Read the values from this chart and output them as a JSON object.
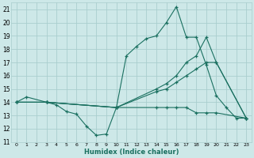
{
  "xlabel": "Humidex (Indice chaleur)",
  "xlim": [
    -0.5,
    23.5
  ],
  "ylim": [
    11,
    21.5
  ],
  "xticks": [
    0,
    1,
    2,
    3,
    4,
    5,
    6,
    7,
    8,
    9,
    10,
    11,
    12,
    13,
    14,
    15,
    16,
    17,
    18,
    19,
    20,
    21,
    22,
    23
  ],
  "yticks": [
    11,
    12,
    13,
    14,
    15,
    16,
    17,
    18,
    19,
    20,
    21
  ],
  "bg_color": "#cde8e8",
  "grid_color": "#aacece",
  "line_color": "#1a7060",
  "lines": [
    {
      "x": [
        0,
        1,
        3,
        4,
        5,
        6,
        7,
        8,
        9,
        10,
        11,
        12,
        13,
        14,
        15,
        16,
        17,
        18,
        19,
        20,
        21,
        22,
        23
      ],
      "y": [
        14.0,
        14.4,
        14.0,
        13.8,
        13.3,
        13.1,
        12.2,
        11.5,
        11.6,
        13.6,
        17.5,
        18.2,
        18.8,
        19.0,
        20.0,
        21.2,
        18.9,
        18.9,
        16.8,
        14.5,
        13.6,
        12.8,
        12.8
      ]
    },
    {
      "x": [
        0,
        3,
        10,
        14,
        15,
        16,
        17,
        18,
        19,
        20,
        23
      ],
      "y": [
        14.0,
        14.0,
        13.6,
        15.0,
        15.4,
        16.0,
        17.0,
        17.5,
        18.9,
        17.0,
        12.8
      ]
    },
    {
      "x": [
        0,
        3,
        10,
        14,
        15,
        16,
        17,
        18,
        19,
        20,
        23
      ],
      "y": [
        14.0,
        14.0,
        13.6,
        14.8,
        15.0,
        15.5,
        16.0,
        16.5,
        17.0,
        17.0,
        12.8
      ]
    },
    {
      "x": [
        0,
        3,
        10,
        14,
        15,
        16,
        17,
        18,
        19,
        20,
        23
      ],
      "y": [
        14.0,
        14.0,
        13.6,
        13.6,
        13.6,
        13.6,
        13.6,
        13.2,
        13.2,
        13.2,
        12.8
      ]
    }
  ]
}
